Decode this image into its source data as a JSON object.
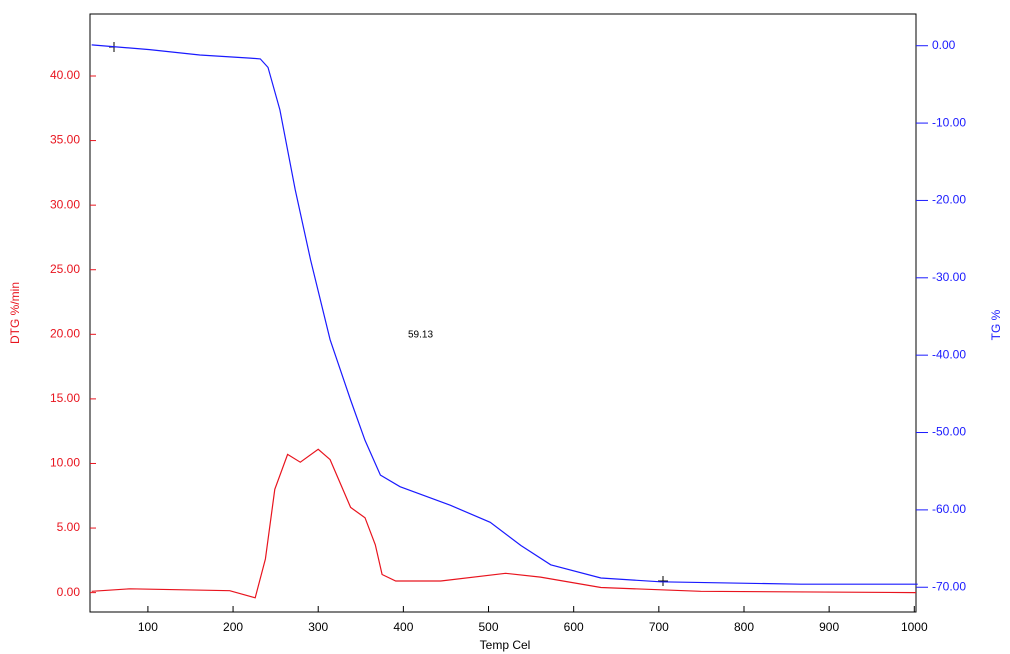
{
  "chart_data": {
    "type": "line",
    "xlabel": "Temp Cel",
    "ylabel": "DTG %/min",
    "y2label": "TG %",
    "annotation": "59.13",
    "xlim": [
      32,
      1002
    ],
    "xticks": [
      100,
      200,
      300,
      400,
      500,
      600,
      700,
      800,
      900,
      1000
    ],
    "ylim": [
      -1.5,
      44.8
    ],
    "yticks": [
      {
        "value": 0,
        "label": "0.00"
      },
      {
        "value": 5,
        "label": "5.00"
      },
      {
        "value": 10,
        "label": "10.00"
      },
      {
        "value": 15,
        "label": "15.00"
      },
      {
        "value": 20,
        "label": "20.00"
      },
      {
        "value": 25,
        "label": "25.00"
      },
      {
        "value": 30,
        "label": "30.00"
      },
      {
        "value": 35,
        "label": "35.00"
      },
      {
        "value": 40,
        "label": "40.00"
      }
    ],
    "y2lim": [
      -73.2,
      4.1
    ],
    "y2ticks": [
      {
        "value": 0,
        "label": "0.00"
      },
      {
        "value": -10,
        "label": "-10.00"
      },
      {
        "value": -20,
        "label": "-20.00"
      },
      {
        "value": -30,
        "label": "-30.00"
      },
      {
        "value": -40,
        "label": "-40.00"
      },
      {
        "value": -50,
        "label": "-50.00"
      },
      {
        "value": -60,
        "label": "-60.00"
      },
      {
        "value": -70,
        "label": "-70.00"
      }
    ],
    "ycolor": "#e8141e",
    "y2color": "#1a1aff",
    "series": [
      {
        "name": "DTG",
        "color": "#e8141e",
        "axis": "y",
        "x": [
          34,
          79,
          196,
          226,
          238,
          249,
          264,
          279,
          300,
          314,
          338,
          355,
          367,
          375,
          391,
          444,
          520,
          561,
          632,
          749,
          1002
        ],
        "values": [
          0.1,
          0.3,
          0.15,
          -0.4,
          2.6,
          8.0,
          10.7,
          10.1,
          11.1,
          10.3,
          6.6,
          5.8,
          3.7,
          1.4,
          0.9,
          0.9,
          1.5,
          1.2,
          0.4,
          0.1,
          0
        ]
      },
      {
        "name": "TG",
        "color": "#1a1aff",
        "axis": "y2",
        "x": [
          34,
          102,
          161,
          220,
          232,
          241,
          255,
          273,
          291,
          314,
          338,
          355,
          373,
          396,
          455,
          502,
          538,
          573,
          632,
          702,
          867,
          1004
        ],
        "values": [
          0.1,
          -0.5,
          -1.2,
          -1.6,
          -1.7,
          -2.8,
          -8.3,
          -18.6,
          -27.7,
          -38.0,
          -45.8,
          -51.0,
          -55.5,
          -57.0,
          -59.4,
          -61.6,
          -64.6,
          -67.1,
          -68.8,
          -69.3,
          -69.6,
          -69.6
        ]
      }
    ]
  }
}
